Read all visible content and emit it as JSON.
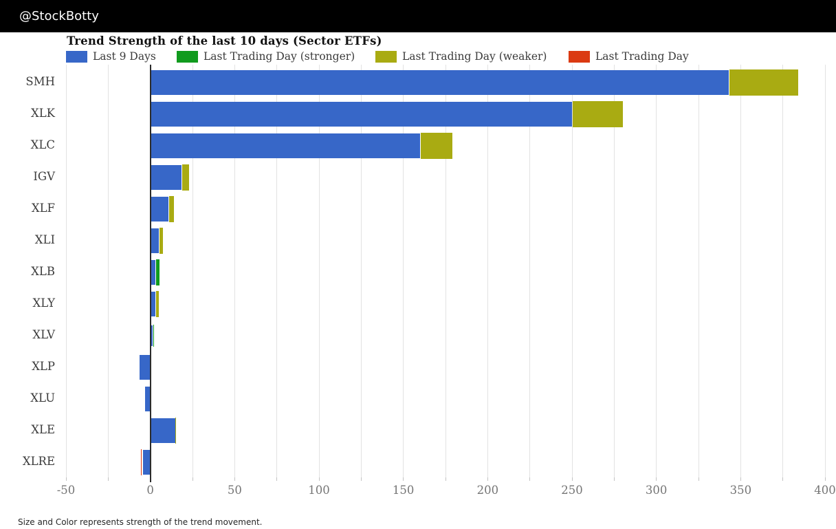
{
  "header": {
    "handle": "@StockBotty"
  },
  "chart_data": {
    "type": "bar",
    "orientation": "horizontal",
    "title": "Trend Strength of the last 10 days (Sector ETFs)",
    "note": "Size and Color represents strength of the trend movement.",
    "categories": [
      "SMH",
      "XLK",
      "XLC",
      "IGV",
      "XLF",
      "XLI",
      "XLB",
      "XLY",
      "XLV",
      "XLP",
      "XLU",
      "XLE",
      "XLRE"
    ],
    "series": [
      {
        "key": "last-9-days",
        "name": "Last 9 Days",
        "color": "#3767C8",
        "values": [
          343,
          250,
          160,
          18.6,
          10.8,
          4.9,
          3.0,
          2.9,
          1.2,
          -6.5,
          -3.1,
          14.9,
          -4.5
        ]
      },
      {
        "key": "last-trading-day-stronger",
        "name": "Last Trading Day (stronger)",
        "color": "#119B1E",
        "values": [
          0,
          0,
          0,
          0,
          0,
          0,
          2.3,
          0,
          1.0,
          0,
          0,
          0,
          0
        ]
      },
      {
        "key": "last-trading-day-weaker",
        "name": "Last Trading Day (weaker)",
        "color": "#A9AB12",
        "values": [
          41,
          30,
          19,
          4.2,
          3.1,
          2.6,
          0,
          2.0,
          0,
          0,
          0,
          0.4,
          0
        ]
      },
      {
        "key": "last-trading-day",
        "name": "Last Trading Day",
        "color": "#DB3A12",
        "values": [
          0,
          0,
          0,
          0,
          0,
          0,
          0,
          0,
          0,
          0,
          0,
          0,
          -1.2
        ]
      }
    ],
    "xlim": [
      -50,
      400
    ],
    "x_ticks": [
      -50,
      0,
      50,
      100,
      150,
      200,
      250,
      300,
      350,
      400
    ],
    "grid_step": 25,
    "grid": true,
    "legend_position": "top"
  }
}
